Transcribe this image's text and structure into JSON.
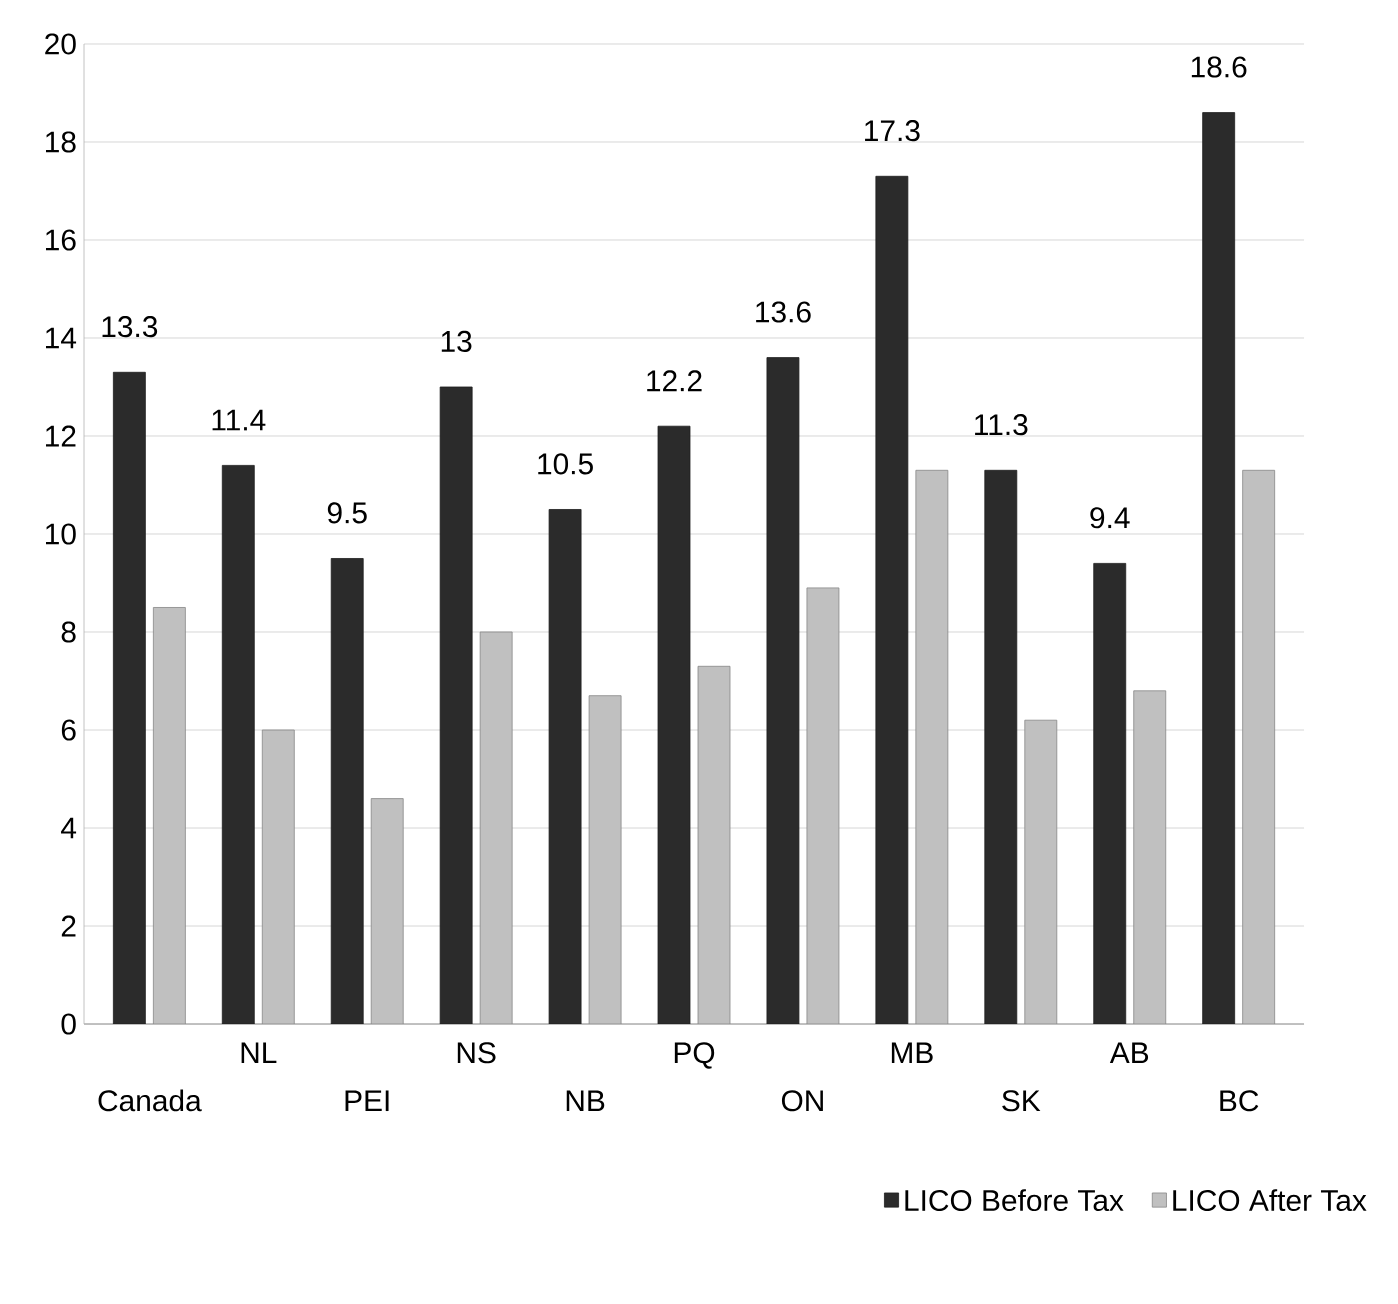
{
  "chart_data": {
    "type": "bar",
    "categories": [
      "Canada",
      "NL",
      "PEI",
      "NS",
      "NB",
      "PQ",
      "ON",
      "MB",
      "SK",
      "AB",
      "BC"
    ],
    "series": [
      {
        "name": "LICO Before Tax",
        "color": "#2b2b2b",
        "values": [
          13.3,
          11.4,
          9.5,
          13,
          10.5,
          12.2,
          13.6,
          17.3,
          11.3,
          9.4,
          18.6
        ],
        "value_labels": [
          "13.3",
          "11.4",
          "9.5",
          "13",
          "10.5",
          "12.2",
          "13.6",
          "17.3",
          "11.3",
          "9.4",
          "18.6"
        ]
      },
      {
        "name": "LICO After Tax",
        "color": "#c0c0c0",
        "values": [
          8.5,
          6,
          4.6,
          8,
          6.7,
          7.3,
          8.9,
          11.3,
          6.2,
          6.8,
          11.3
        ]
      }
    ],
    "ylim": [
      0,
      20
    ],
    "yticks": [
      0,
      2,
      4,
      6,
      8,
      10,
      12,
      14,
      16,
      18,
      20
    ],
    "grid": "y",
    "legend": "bottom right"
  }
}
